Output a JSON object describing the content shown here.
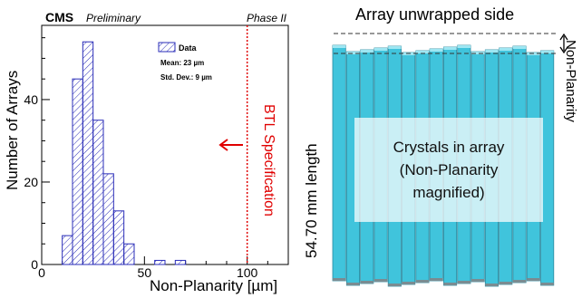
{
  "chart_data": [
    {
      "type": "bar",
      "experiment": "CMS",
      "status": "Preliminary",
      "phase": "Phase II",
      "xlabel": "Non-Planarity [µm]",
      "ylabel": "Number of Arrays",
      "xlim": [
        0,
        120
      ],
      "ylim": [
        0,
        58
      ],
      "xticks": [
        "0",
        "50",
        "100"
      ],
      "yticks": [
        "0",
        "20",
        "40"
      ],
      "bin_width": 5,
      "bins": [
        {
          "x": 5,
          "value": 0
        },
        {
          "x": 10,
          "value": 7
        },
        {
          "x": 15,
          "value": 45
        },
        {
          "x": 20,
          "value": 54
        },
        {
          "x": 25,
          "value": 35
        },
        {
          "x": 30,
          "value": 22
        },
        {
          "x": 35,
          "value": 13
        },
        {
          "x": 40,
          "value": 5
        },
        {
          "x": 45,
          "value": 0
        },
        {
          "x": 50,
          "value": 0
        },
        {
          "x": 55,
          "value": 1
        },
        {
          "x": 60,
          "value": 0
        },
        {
          "x": 65,
          "value": 1
        }
      ],
      "legend": {
        "series": "Data",
        "mean": "Mean: 23 µm",
        "std": "Std. Dev.: 9 µm",
        "position": "top-right"
      },
      "specification": {
        "x": 100,
        "label": "BTL Specification"
      },
      "colors": {
        "bars": "#2a2db8",
        "specification": "#e00000"
      }
    },
    {
      "type": "diagram",
      "title": "Array unwrapped side",
      "length_label": "54.70 mm length",
      "nonplanarity_label": "Non-Planarity",
      "center_text": [
        "Crystals in array",
        "(Non-Planarity",
        "magnified)"
      ],
      "crystal_count": 16,
      "colors": {
        "crystal": "#40c4dc",
        "crystal_edge": "#2a8aa0"
      }
    }
  ]
}
